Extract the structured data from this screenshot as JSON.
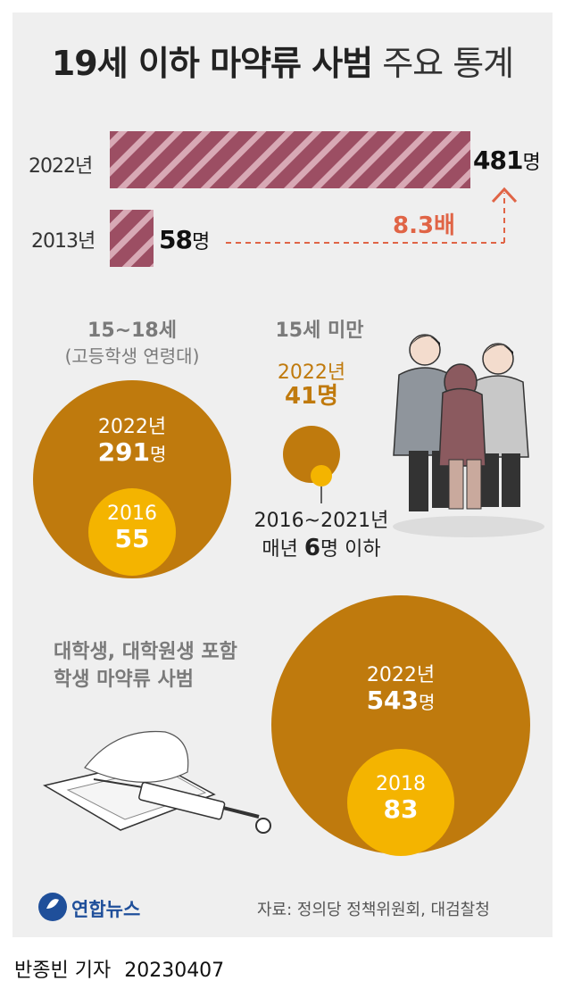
{
  "title": {
    "bold": "19세 이하 마약류 사범",
    "light": "주요 통계"
  },
  "chart_data": [
    {
      "type": "bar",
      "categories": [
        "2022년",
        "2013년"
      ],
      "values": [
        481,
        58
      ],
      "value_labels": [
        "481명",
        "58명"
      ],
      "annotation": "8.3배",
      "colors": {
        "bar": "#9c4e63",
        "stripe": "#d8a9b5",
        "arrow": "#e06446"
      }
    },
    {
      "type": "bubble",
      "title": "15~18세",
      "subtitle": "(고등학생 연령대)",
      "outer": {
        "label": "2022년",
        "value": 291,
        "value_label": "291명"
      },
      "inner": {
        "label": "2016",
        "value": 55,
        "value_label": "55"
      }
    },
    {
      "type": "bubble",
      "title": "15세 미만",
      "outer": {
        "label": "2022년",
        "value": 41,
        "value_label": "41명"
      },
      "inner_note": {
        "line1": "2016~2021년",
        "line2_pre": "매년 ",
        "line2_num": "6",
        "line2_post": "명 이하"
      }
    },
    {
      "type": "bubble",
      "title_lines": [
        "대학생, 대학원생 포함",
        "학생 마약류 사범"
      ],
      "outer": {
        "label": "2022년",
        "value": 543,
        "value_label": "543명"
      },
      "inner": {
        "label": "2018",
        "value": 83,
        "value_label": "83"
      }
    }
  ],
  "colors": {
    "outer_circle": "#bf7a0d",
    "inner_circle": "#f4b400",
    "background": "#efefef"
  },
  "icons": [
    "students-illustration",
    "syringe-illustration",
    "yonhap-logo-icon"
  ],
  "logo": "연합뉴스",
  "source": "자료: 정의당 정책위원회, 대검찰청",
  "byline": {
    "reporter": "반종빈 기자",
    "date": "20230407"
  }
}
